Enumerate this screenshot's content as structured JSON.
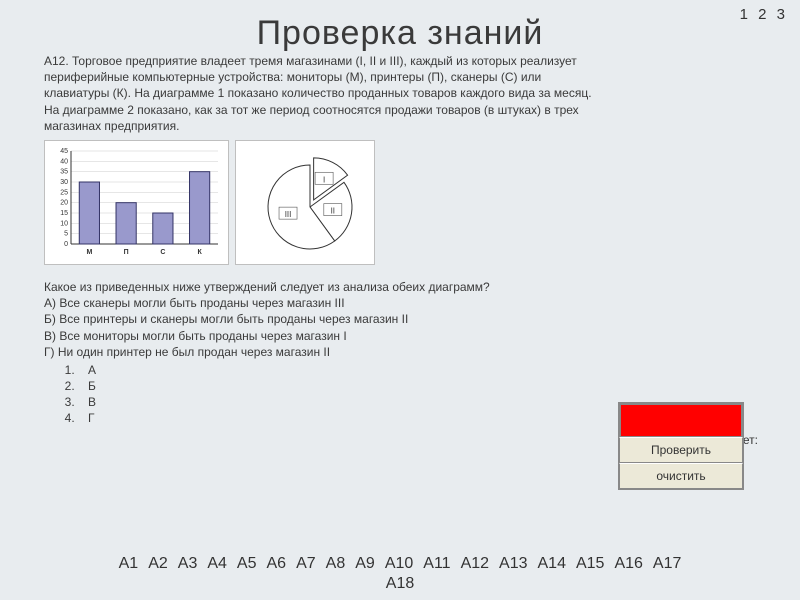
{
  "top_nav": {
    "items": [
      "1",
      "2",
      "3"
    ]
  },
  "title": "Проверка знаний",
  "problem_text": "А12. Торговое предприятие владеет тремя магазинами (I, II и III), каждый из которых реализует периферийные компьютерные устройства: мониторы (М), принтеры (П), сканеры (С) или клавиатуры (К). На диаграмме 1 показано количество проданных товаров каждого вида за месяц. На диаграмме 2 показано, как за тот же период соотносятся продажи товаров (в штуках) в трех магазинах предприятия.",
  "bar_chart": {
    "type": "bar",
    "categories": [
      "М",
      "П",
      "С",
      "К"
    ],
    "values": [
      30,
      20,
      15,
      35
    ],
    "ylim": [
      0,
      45
    ],
    "ytick_step": 5,
    "bar_color": "#9999cc",
    "bar_border": "#333366",
    "grid_color": "#cccccc",
    "axis_color": "#333333",
    "background": "#ffffff",
    "label_fontsize": 7,
    "bar_width": 0.55
  },
  "pie_chart": {
    "type": "pie",
    "slices": [
      {
        "label": "I",
        "value": 15,
        "color": "#ffffff",
        "border": "#333333"
      },
      {
        "label": "II",
        "value": 25,
        "color": "#ffffff",
        "border": "#333333"
      },
      {
        "label": "III",
        "value": 60,
        "color": "#ffffff",
        "border": "#333333"
      }
    ],
    "background": "#ffffff",
    "exploded_index": 0,
    "label_fontsize": 8
  },
  "question_intro": "Какое из приведенных ниже утверждений следует из анализа обеих диаграмм?",
  "variants": [
    "А) Все сканеры могли быть проданы через магазин III",
    "Б) Все принтеры и сканеры могли быть проданы через магазин II",
    "В) Все мониторы могли быть проданы через магазин I",
    "Г) Ни один принтер не был продан через магазин II"
  ],
  "answer_options": [
    "А",
    "Б",
    "В",
    "Г"
  ],
  "controls": {
    "answer_label": "Ответ:",
    "check": "Проверить",
    "clear": "очистить",
    "red_box_color": "#ff0000"
  },
  "bottom_nav": {
    "row1": [
      "А1",
      "А2",
      "А3",
      "А4",
      "А5",
      "А6",
      "А7",
      "А8",
      "А9",
      "А10",
      "А11",
      "А12",
      "А13",
      "А14",
      "А15",
      "А16",
      "А17"
    ],
    "row2": [
      "А18"
    ]
  },
  "colors": {
    "page_bg": "#e8ecef",
    "panel_bg": "#ece9d8",
    "text": "#3a3a3a"
  }
}
